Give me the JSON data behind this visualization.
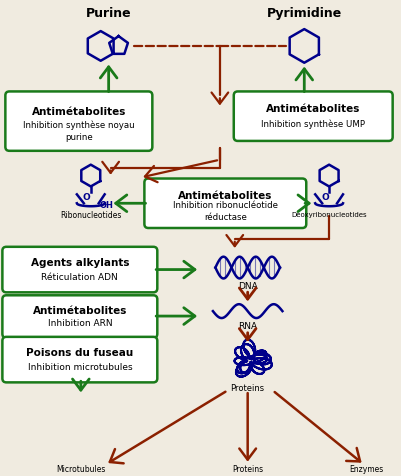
{
  "bg_color": "#f0ebe0",
  "dark_red": "#8B2000",
  "green": "#1a7a1a",
  "dark_blue": "#00008B",
  "box_bg": "#ffffff",
  "box_border": "#1a7a1a",
  "purine_label": "Purine",
  "pyrimidine_label": "Pyrimidine",
  "box1_title": "Antimétabolites",
  "box1_sub": "Inhibition synthèse noyau\npurine",
  "box2_title": "Antimétabolites",
  "box2_sub": "Inhibition synthèse UMP",
  "box3_title": "Antimétabolites",
  "box3_sub": "Inhibition ribonucléotide\nréductase",
  "box4_title": "Agents alkylants",
  "box4_sub": "Réticulation ADN",
  "box5_title": "Antimétabolites",
  "box5_sub": "Inhibition ARN",
  "box6_title": "Poisons du fuseau",
  "box6_sub": "Inhibition microtubules",
  "ribo_label": "Ribonucleotides",
  "deoxyrib_label": "Deoxyribonucleotides",
  "dna_label": "DNA",
  "rna_label": "RNA",
  "proteins_label": "Proteins",
  "microtubules_label": "Microtubules",
  "enzymes_label": "Enzymes"
}
